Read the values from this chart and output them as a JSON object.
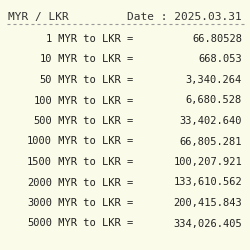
{
  "title_left": "MYR / LKR",
  "title_right": "Date : 2025.03.31",
  "background_color": "#FAFBE8",
  "header_color": "#333333",
  "row_color": "#222222",
  "font_family": "monospace",
  "title_fontsize": 8.0,
  "row_fontsize": 7.5,
  "divider_color": "#999999",
  "rows": [
    {
      "from": "1",
      "to": "66.80528"
    },
    {
      "from": "10",
      "to": "668.053"
    },
    {
      "from": "50",
      "to": "3,340.264"
    },
    {
      "from": "100",
      "to": "6,680.528"
    },
    {
      "from": "500",
      "to": "33,402.640"
    },
    {
      "from": "1000",
      "to": "66,805.281"
    },
    {
      "from": "1500",
      "to": "100,207.921"
    },
    {
      "from": "2000",
      "to": "133,610.562"
    },
    {
      "from": "3000",
      "to": "200,415.843"
    },
    {
      "from": "5000",
      "to": "334,026.405"
    }
  ]
}
